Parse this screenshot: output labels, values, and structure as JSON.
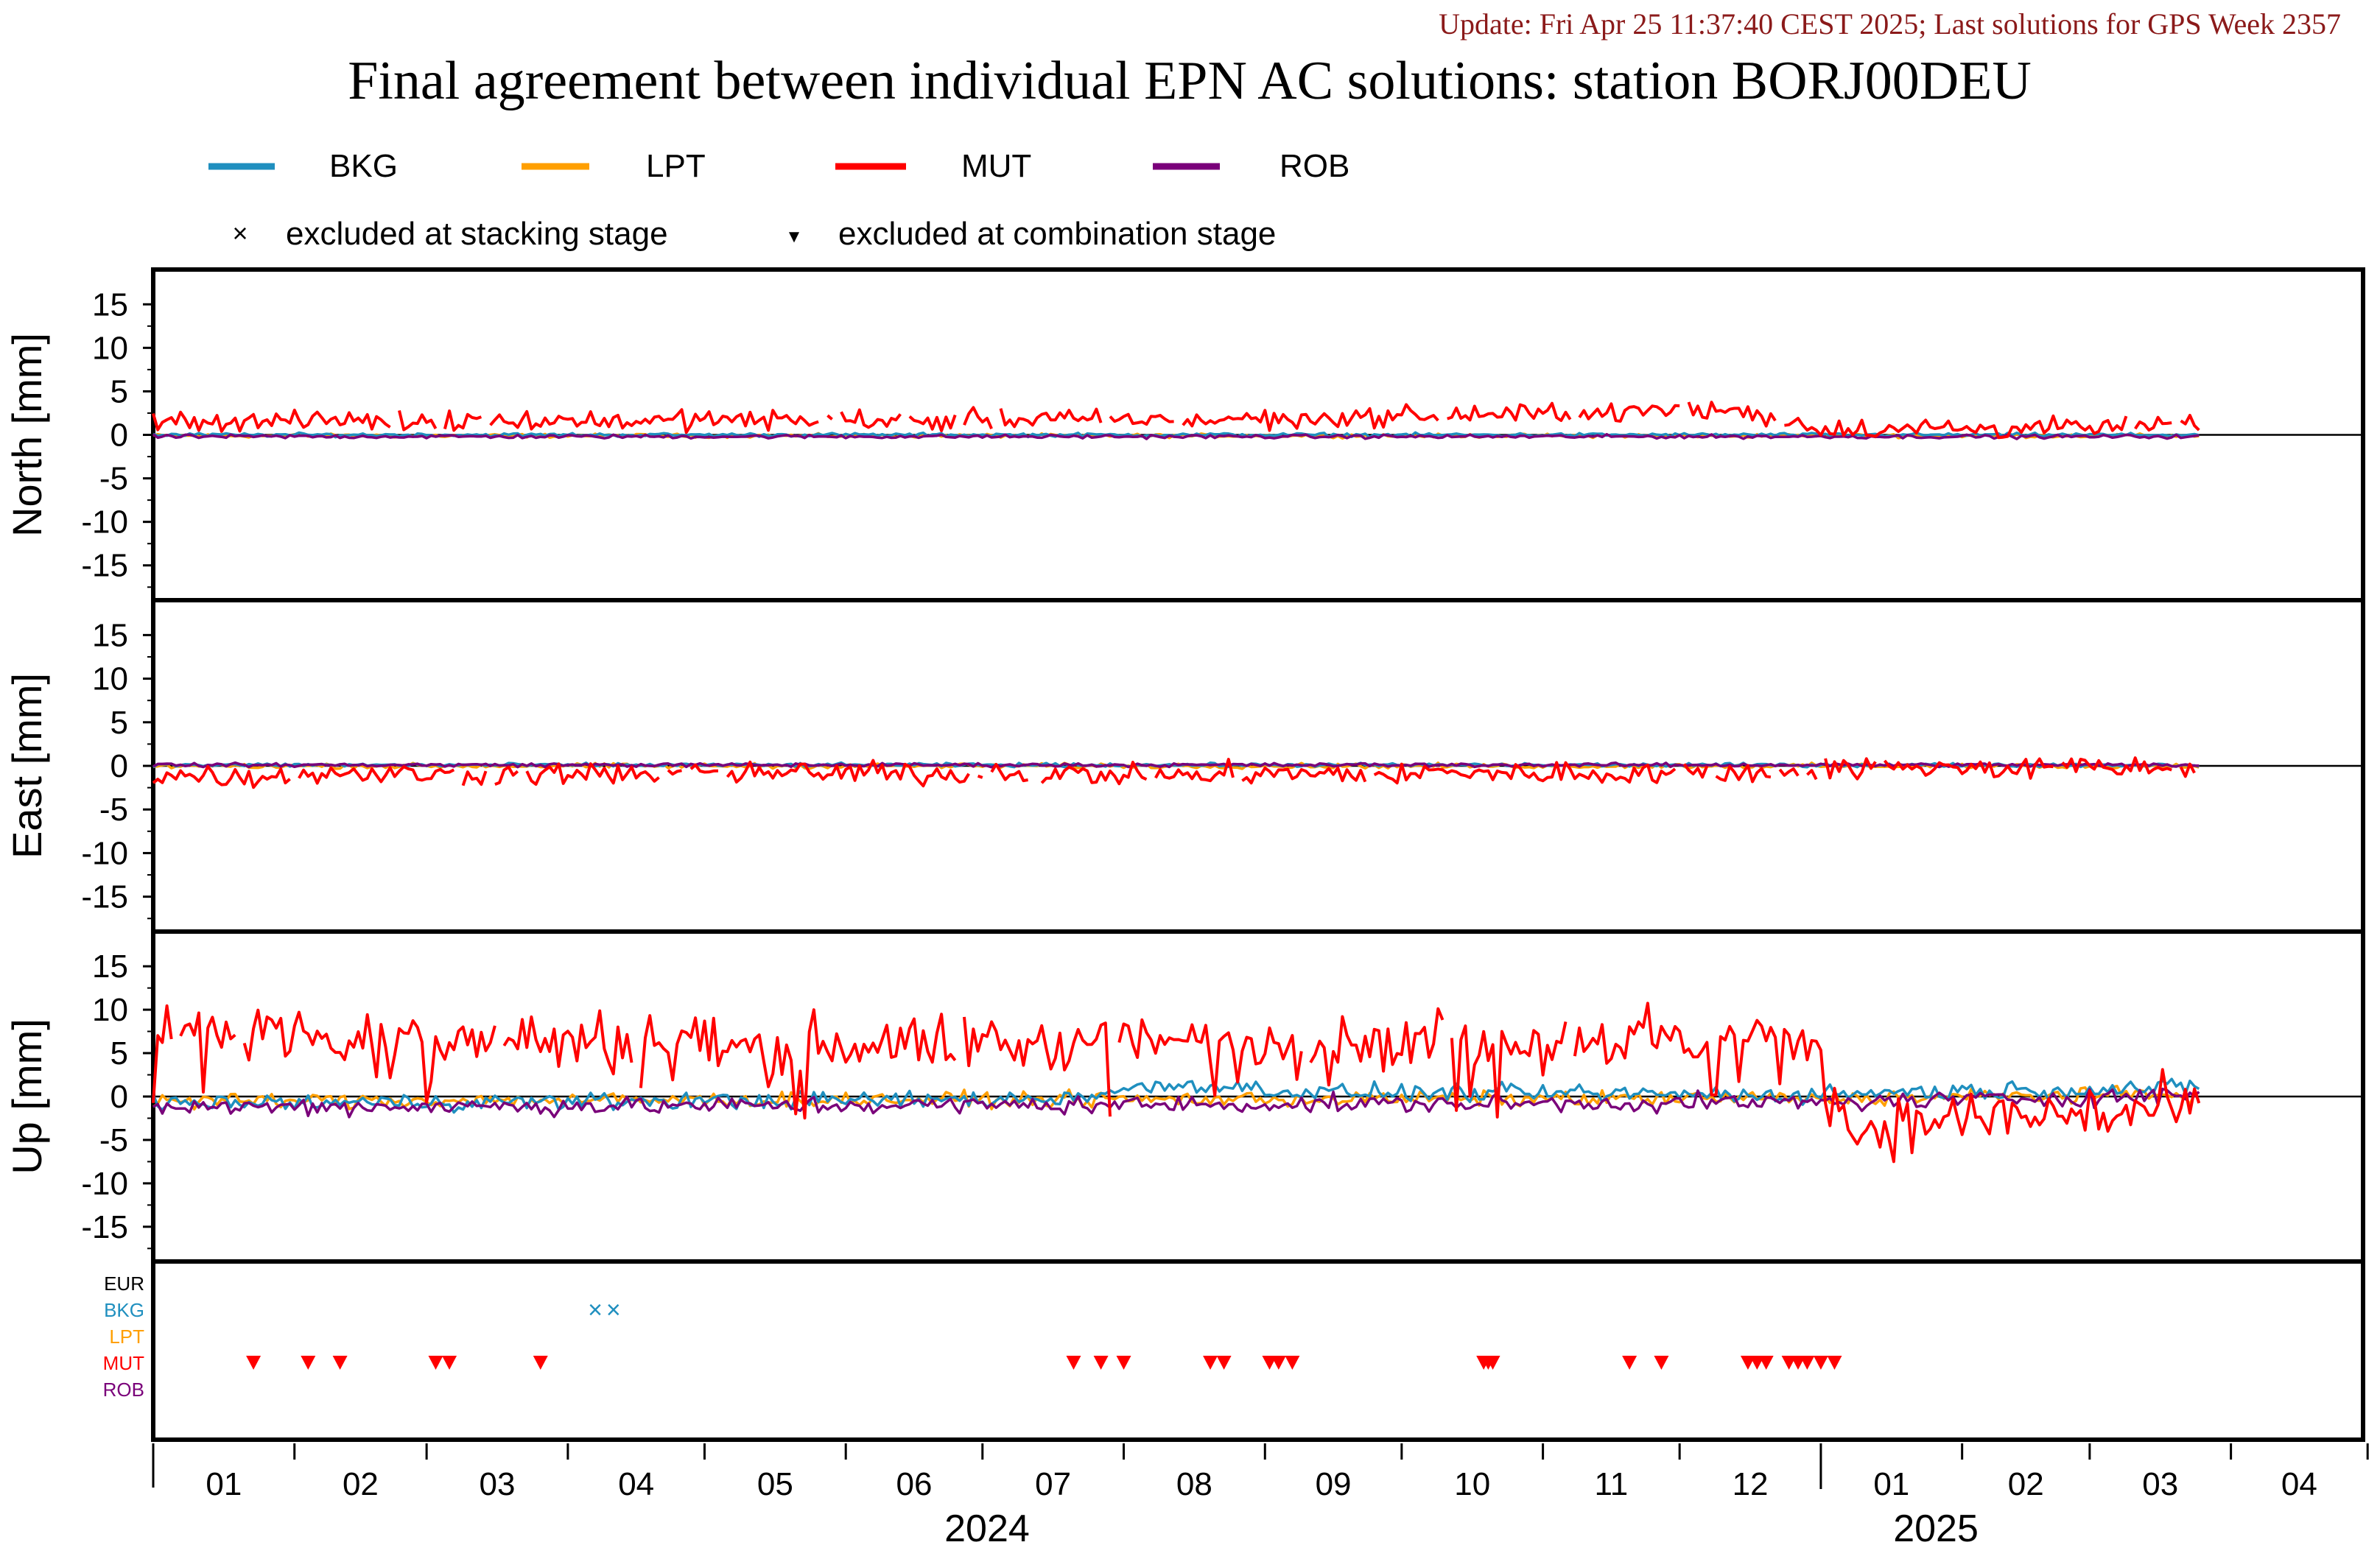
{
  "update_text": "Update: Fri Apr 25 11:37:40 CEST 2025; Last solutions for GPS Week 2357",
  "title": "Final agreement between individual EPN AC solutions: station BORJ00DEU",
  "legend": {
    "series": [
      {
        "name": "BKG",
        "color": "#1f8fbf"
      },
      {
        "name": "LPT",
        "color": "#ff9f00"
      },
      {
        "name": "MUT",
        "color": "#ff0000"
      },
      {
        "name": "ROB",
        "color": "#7a007a"
      }
    ],
    "marker_stacking_symbol": "×",
    "marker_stacking_label": "excluded at stacking stage",
    "marker_combination_symbol": "▼",
    "marker_combination_label": "excluded at combination stage"
  },
  "chart_data": {
    "type": "line",
    "x_axis": {
      "range": [
        "2024-01-01",
        "2025-04-30"
      ],
      "months": [
        "01",
        "02",
        "03",
        "04",
        "05",
        "06",
        "07",
        "08",
        "09",
        "10",
        "11",
        "12",
        "01",
        "02",
        "03",
        "04"
      ],
      "years": [
        "2024",
        "2025"
      ]
    },
    "panels": [
      {
        "id": "north",
        "ylabel": "North [mm]",
        "ylim": [
          -19,
          19
        ],
        "yticks": [
          "15",
          "10",
          "5",
          "0",
          "-5",
          "-10",
          "-15"
        ],
        "series": [
          {
            "name": "BKG",
            "mean": 0.0,
            "note": "near zero"
          },
          {
            "name": "LPT",
            "mean": -0.1
          },
          {
            "name": "MUT",
            "knots": [
              [
                "2024-01-01",
                1.6
              ],
              [
                "2024-05-01",
                1.7
              ],
              [
                "2024-09-01",
                1.8
              ],
              [
                "2024-10-15",
                2.3
              ],
              [
                "2024-12-15",
                2.8
              ],
              [
                "2025-01-01",
                0.7
              ],
              [
                "2025-03-25",
                0.9
              ]
            ]
          },
          {
            "name": "ROB",
            "mean": -0.2
          }
        ]
      },
      {
        "id": "east",
        "ylabel": "East [mm]",
        "ylim": [
          -19,
          19
        ],
        "yticks": [
          "15",
          "10",
          "5",
          "0",
          "-5",
          "-10",
          "-15"
        ],
        "series": [
          {
            "name": "BKG",
            "mean": 0.1
          },
          {
            "name": "LPT",
            "mean": 0.0
          },
          {
            "name": "MUT",
            "knots": [
              [
                "2024-01-01",
                -1.1
              ],
              [
                "2024-06-01",
                -0.8
              ],
              [
                "2024-09-01",
                -1.0
              ],
              [
                "2024-12-31",
                -0.7
              ],
              [
                "2025-01-05",
                -0.2
              ],
              [
                "2025-03-25",
                -0.3
              ]
            ]
          },
          {
            "name": "ROB",
            "mean": 0.1
          }
        ]
      },
      {
        "id": "up",
        "ylabel": "Up [mm]",
        "ylim": [
          -19,
          19
        ],
        "yticks": [
          "15",
          "10",
          "5",
          "0",
          "-5",
          "-10",
          "-15"
        ],
        "series": [
          {
            "name": "BKG",
            "knots": [
              [
                "2024-01-01",
                -0.8
              ],
              [
                "2024-07-15",
                -0.3
              ],
              [
                "2024-08-15",
                1.5
              ],
              [
                "2024-09-10",
                0.5
              ],
              [
                "2024-12-31",
                0.2
              ],
              [
                "2025-01-10",
                0.5
              ],
              [
                "2025-03-25",
                1.0
              ]
            ]
          },
          {
            "name": "LPT",
            "knots": [
              [
                "2024-01-01",
                -0.5
              ],
              [
                "2024-12-31",
                -0.2
              ],
              [
                "2025-03-25",
                0.3
              ]
            ]
          },
          {
            "name": "MUT",
            "knots": [
              [
                "2024-01-01",
                7.5
              ],
              [
                "2024-04-01",
                6.5
              ],
              [
                "2024-07-01",
                6.0
              ],
              [
                "2024-10-01",
                6.5
              ],
              [
                "2024-12-31",
                6.5
              ],
              [
                "2025-01-06",
                -4.0
              ],
              [
                "2025-02-01",
                -2.5
              ],
              [
                "2025-03-25",
                -1.5
              ]
            ]
          },
          {
            "name": "ROB",
            "knots": [
              [
                "2024-01-01",
                -1.2
              ],
              [
                "2024-07-01",
                -1.0
              ],
              [
                "2024-12-31",
                -0.7
              ],
              [
                "2025-03-25",
                0.2
              ]
            ]
          }
        ]
      }
    ],
    "exclusions": {
      "rows": [
        "EUR",
        "BKG",
        "LPT",
        "MUT",
        "ROB"
      ],
      "stacking": [
        {
          "series": "BKG",
          "dates": [
            "2024-04-07",
            "2024-04-11"
          ]
        }
      ],
      "combination": [
        {
          "series": "MUT",
          "dates": [
            "2024-01-23",
            "2024-02-04",
            "2024-02-11",
            "2024-03-03",
            "2024-03-06",
            "2024-03-26",
            "2024-07-21",
            "2024-07-27",
            "2024-08-01",
            "2024-08-20",
            "2024-08-23",
            "2024-09-02",
            "2024-09-04",
            "2024-09-07",
            "2024-10-19",
            "2024-10-20",
            "2024-10-21",
            "2024-11-20",
            "2024-11-27",
            "2024-12-16",
            "2024-12-18",
            "2024-12-20",
            "2024-12-25",
            "2024-12-27",
            "2024-12-29",
            "2025-01-01",
            "2025-01-04"
          ]
        }
      ]
    }
  }
}
